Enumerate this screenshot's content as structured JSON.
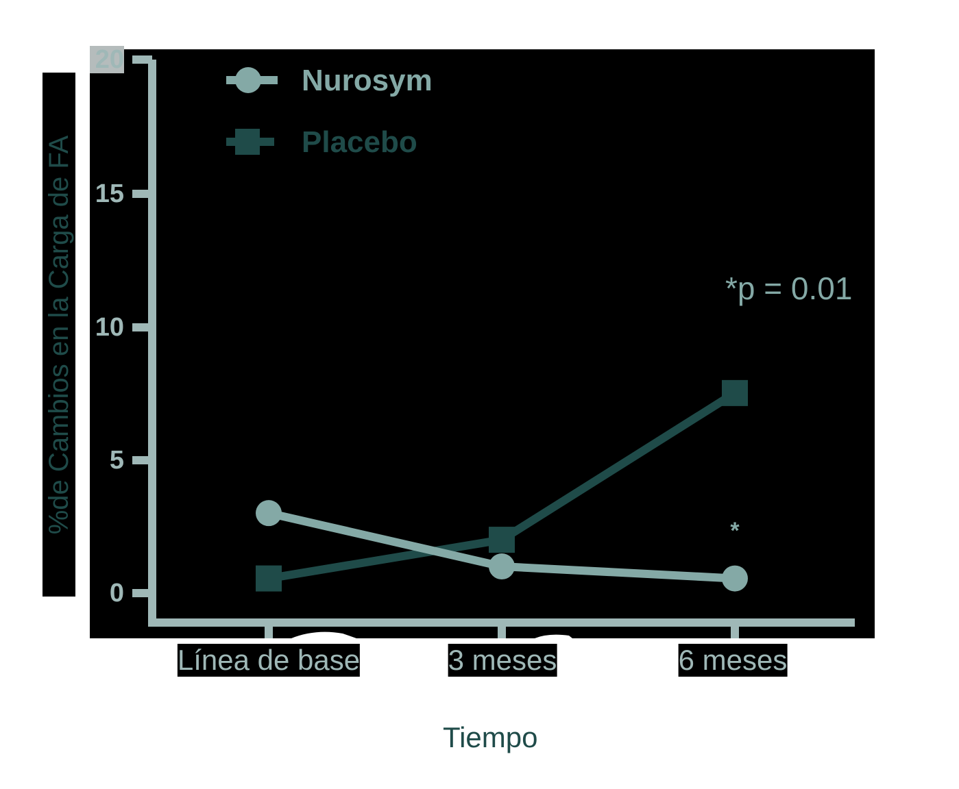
{
  "chart_data": {
    "type": "line",
    "title": "",
    "xlabel": "Tiempo",
    "ylabel": "%de Cambios en la Carga de FA",
    "categories": [
      "Línea de base",
      "3 meses",
      "6 meses"
    ],
    "yticks": [
      "0",
      "5",
      "10",
      "15",
      "20"
    ],
    "ylim": [
      0,
      20
    ],
    "grid": false,
    "legend_position": "top-left",
    "series": [
      {
        "name": "Nurosym",
        "marker": "circle",
        "color": "#84a9a6",
        "values": [
          3.0,
          1.0,
          0.55
        ]
      },
      {
        "name": "Placebo",
        "marker": "square",
        "color": "#1f4b49",
        "values": [
          0.55,
          2.0,
          7.5
        ]
      }
    ],
    "annotations": [
      {
        "text": "*p = 0.01",
        "position": "upper-right"
      },
      {
        "text": "*",
        "x": "6 meses",
        "y": 2.4
      }
    ]
  },
  "legend": {
    "items": [
      {
        "label": "Nurosym"
      },
      {
        "label": "Placebo"
      }
    ]
  },
  "annotation_text": "*p = 0.01",
  "significance_marker": "*"
}
